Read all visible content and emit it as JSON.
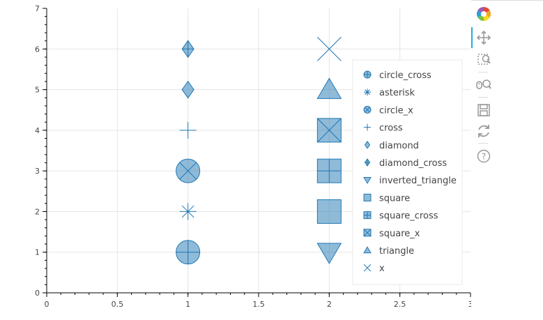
{
  "chart_data": {
    "type": "scatter",
    "xlim": [
      0,
      3
    ],
    "ylim": [
      0,
      7
    ],
    "x_ticks": [
      "0",
      "0.5",
      "1",
      "1.5",
      "2",
      "2.5",
      "3"
    ],
    "y_ticks": [
      "0",
      "1",
      "2",
      "3",
      "4",
      "5",
      "6",
      "7"
    ],
    "grid": true,
    "legend_position": "right",
    "color": "#1f77b4",
    "series": [
      {
        "name": "circle_cross",
        "marker": "circle_cross",
        "x": 1,
        "y": 1,
        "size": "large"
      },
      {
        "name": "asterisk",
        "marker": "asterisk",
        "x": 1,
        "y": 2,
        "size": "medium"
      },
      {
        "name": "circle_x",
        "marker": "circle_x",
        "x": 1,
        "y": 3,
        "size": "large"
      },
      {
        "name": "cross",
        "marker": "cross",
        "x": 1,
        "y": 4,
        "size": "medium"
      },
      {
        "name": "diamond",
        "marker": "diamond",
        "x": 1,
        "y": 5,
        "size": "medium"
      },
      {
        "name": "diamond_cross",
        "marker": "diamond_cross",
        "x": 1,
        "y": 6,
        "size": "medium"
      },
      {
        "name": "inverted_triangle",
        "marker": "inverted_triangle",
        "x": 2,
        "y": 1,
        "size": "large"
      },
      {
        "name": "square",
        "marker": "square",
        "x": 2,
        "y": 2,
        "size": "large"
      },
      {
        "name": "square_cross",
        "marker": "square_cross",
        "x": 2,
        "y": 3,
        "size": "large"
      },
      {
        "name": "square_x",
        "marker": "square_x",
        "x": 2,
        "y": 4,
        "size": "large"
      },
      {
        "name": "triangle",
        "marker": "triangle",
        "x": 2,
        "y": 5,
        "size": "large"
      },
      {
        "name": "x",
        "marker": "x",
        "x": 2,
        "y": 6,
        "size": "large"
      }
    ]
  },
  "toolbar": {
    "tools": [
      {
        "name": "bokeh-logo-icon",
        "interactable": true
      },
      {
        "name": "pan-tool-icon",
        "interactable": true,
        "active": true
      },
      {
        "name": "box-zoom-tool-icon",
        "interactable": true
      },
      {
        "name": "wheel-zoom-tool-icon",
        "interactable": true
      },
      {
        "name": "save-tool-icon",
        "interactable": true
      },
      {
        "name": "reset-tool-icon",
        "interactable": true
      },
      {
        "name": "help-tool-icon",
        "interactable": true
      }
    ]
  }
}
